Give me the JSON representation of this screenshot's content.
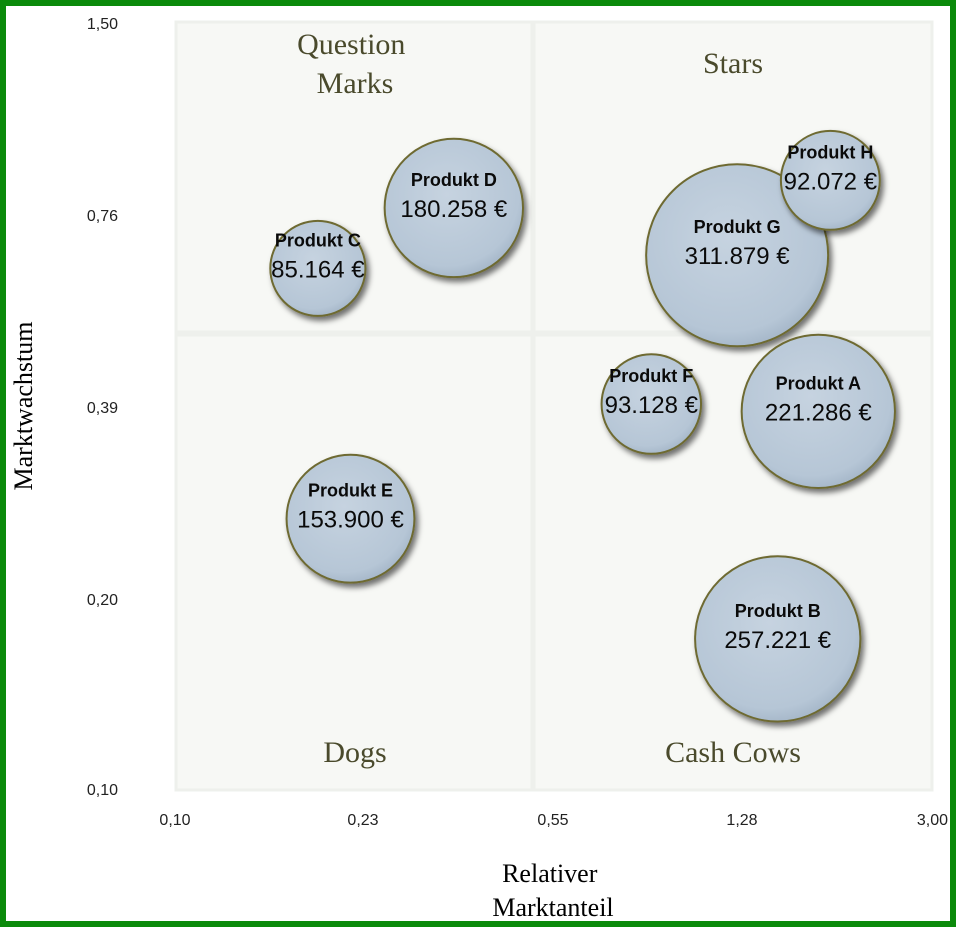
{
  "chart_data": {
    "type": "bubble",
    "xlabel": [
      "Relativer",
      "Marktanteil"
    ],
    "ylabel": "Marktwachstum",
    "x_scale": "log",
    "y_scale": "log",
    "xlim": [
      0.1,
      3.0
    ],
    "ylim": [
      0.1,
      1.5
    ],
    "x_ticks": [
      "0,10",
      "0,23",
      "0,55",
      "1,28",
      "3,00"
    ],
    "y_ticks": [
      "0,10",
      "0,20",
      "0,39",
      "0,76",
      "1,50"
    ],
    "quadrants": {
      "top_left": [
        "Question",
        "Marks"
      ],
      "top_right": [
        "Stars"
      ],
      "bottom_left": [
        "Dogs"
      ],
      "bottom_right": [
        "Cash Cows"
      ]
    },
    "bubbles": [
      {
        "name": "Produkt A",
        "value_label": "221.286 €",
        "value": 221286,
        "x": 1.8,
        "y": 0.38
      },
      {
        "name": "Produkt B",
        "value_label": "257.221 €",
        "value": 257221,
        "x": 1.5,
        "y": 0.17
      },
      {
        "name": "Produkt C",
        "value_label": "85.164 €",
        "value": 85164,
        "x": 0.19,
        "y": 0.63
      },
      {
        "name": "Produkt D",
        "value_label": "180.258 €",
        "value": 180258,
        "x": 0.35,
        "y": 0.78
      },
      {
        "name": "Produkt E",
        "value_label": "153.900 €",
        "value": 153900,
        "x": 0.22,
        "y": 0.26
      },
      {
        "name": "Produkt F",
        "value_label": "93.128 €",
        "value": 93128,
        "x": 0.85,
        "y": 0.39
      },
      {
        "name": "Produkt G",
        "value_label": "311.879 €",
        "value": 311879,
        "x": 1.25,
        "y": 0.66
      },
      {
        "name": "Produkt H",
        "value_label": "92.072 €",
        "value": 92072,
        "x": 1.9,
        "y": 0.86
      }
    ],
    "bubble_fill": "#b8c8d8",
    "bubble_stroke": "#6e6a30",
    "quadrant_label_color": "#4a4a2c"
  },
  "frame_color": "#0b8a0b"
}
